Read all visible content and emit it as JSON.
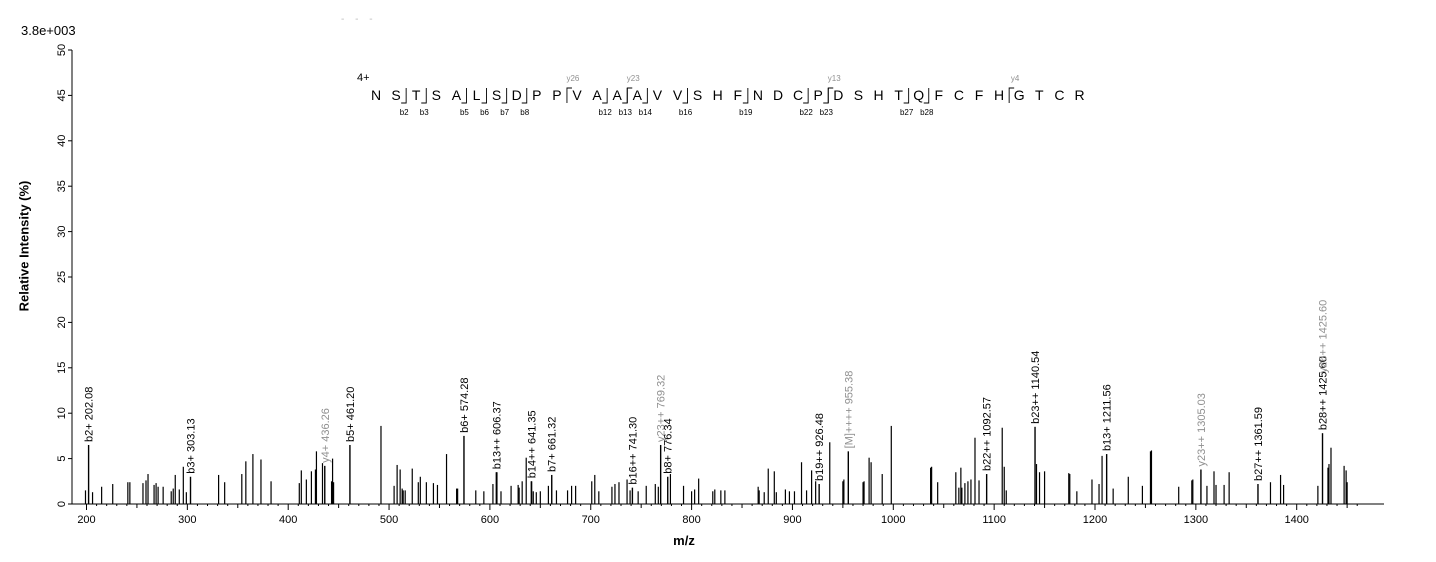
{
  "header": {
    "scale": "3.8e+003",
    "dashes": "- - -",
    "charge": "4+"
  },
  "colors": {
    "matched": "#000000",
    "matched_y": "#909090",
    "peak": "#000000",
    "axis": "#000000"
  },
  "sequence": {
    "residues": [
      "N",
      "S",
      "T",
      "S",
      "A",
      "L",
      "S",
      "D",
      "P",
      "P",
      "V",
      "A",
      "A",
      "A",
      "V",
      "V",
      "S",
      "H",
      "F",
      "N",
      "D",
      "C",
      "P",
      "D",
      "S",
      "H",
      "T",
      "Q",
      "F",
      "C",
      "F",
      "H",
      "G",
      "T",
      "C",
      "R"
    ],
    "b_ions": [
      {
        "after": 2,
        "label": "b2"
      },
      {
        "after": 3,
        "label": "b3"
      },
      {
        "after": 5,
        "label": "b5"
      },
      {
        "after": 6,
        "label": "b6"
      },
      {
        "after": 7,
        "label": "b7"
      },
      {
        "after": 8,
        "label": "b8"
      },
      {
        "after": 12,
        "label": "b12"
      },
      {
        "after": 13,
        "label": "b13"
      },
      {
        "after": 14,
        "label": "b14"
      },
      {
        "after": 16,
        "label": "b16"
      },
      {
        "after": 19,
        "label": "b19"
      },
      {
        "after": 22,
        "label": "b22"
      },
      {
        "after": 23,
        "label": "b23"
      },
      {
        "after": 27,
        "label": "b27"
      },
      {
        "after": 28,
        "label": "b28"
      }
    ],
    "y_ions": [
      {
        "after": 10,
        "label": "y26"
      },
      {
        "after": 13,
        "label": "y23"
      },
      {
        "after": 23,
        "label": "y13"
      },
      {
        "after": 32,
        "label": "y4"
      }
    ]
  },
  "chart_data": {
    "type": "bar",
    "title": "",
    "xlabel": "m/z",
    "ylabel": "Relative   Intensity (%)",
    "xlim": [
      195,
      1485
    ],
    "ylim": [
      0,
      50
    ],
    "xticks": [
      200,
      300,
      400,
      500,
      600,
      700,
      800,
      900,
      1000,
      1100,
      1200,
      1300,
      1400
    ],
    "yticks": [
      0,
      5,
      10,
      15,
      20,
      25,
      30,
      35,
      40,
      45,
      50
    ],
    "annotated_peaks": [
      {
        "mz": 202.08,
        "y": 6.5,
        "label": "b2+ 202.08",
        "ion": "b"
      },
      {
        "mz": 303.13,
        "y": 3.0,
        "label": "b3+ 303.13",
        "ion": "b"
      },
      {
        "mz": 436.26,
        "y": 4.2,
        "label": "y4+ 436.26",
        "ion": "y"
      },
      {
        "mz": 461.2,
        "y": 6.5,
        "label": "b5+ 461.20",
        "ion": "b"
      },
      {
        "mz": 574.28,
        "y": 7.5,
        "label": "b6+ 574.28",
        "ion": "b"
      },
      {
        "mz": 606.37,
        "y": 3.5,
        "label": "b13++ 606.37",
        "ion": "b"
      },
      {
        "mz": 641.35,
        "y": 2.5,
        "label": "b14++ 641.35",
        "ion": "b"
      },
      {
        "mz": 661.32,
        "y": 3.2,
        "label": "b7+ 661.32",
        "ion": "b"
      },
      {
        "mz": 741.3,
        "y": 1.8,
        "label": "b16++ 741.30",
        "ion": "b"
      },
      {
        "mz": 769.32,
        "y": 6.5,
        "label": "y23++ 769.32",
        "ion": "y"
      },
      {
        "mz": 776.34,
        "y": 3.0,
        "label": "b8+ 776.34",
        "ion": "b"
      },
      {
        "mz": 926.48,
        "y": 2.2,
        "label": "b19++ 926.48",
        "ion": "b"
      },
      {
        "mz": 955.38,
        "y": 5.8,
        "label": "[M]++++ 955.38",
        "ion": "y"
      },
      {
        "mz": 1092.57,
        "y": 3.3,
        "label": "b22++ 1092.57",
        "ion": "b"
      },
      {
        "mz": 1140.54,
        "y": 8.5,
        "label": "b23++ 1140.54",
        "ion": "b"
      },
      {
        "mz": 1211.56,
        "y": 5.5,
        "label": "b13+ 1211.56",
        "ion": "b"
      },
      {
        "mz": 1305.03,
        "y": 3.8,
        "label": "y23++ 1305.03",
        "ion": "y"
      },
      {
        "mz": 1361.59,
        "y": 2.2,
        "label": "b27++ 1361.59",
        "ion": "b"
      },
      {
        "mz": 1425.6,
        "y": 7.8,
        "label": "b28++ 1425.60",
        "ion": "b"
      },
      {
        "mz": 1425.6,
        "y": 7.8,
        "label": "y26++ 1425.60",
        "ion": "y",
        "high": true
      }
    ],
    "peaks": [
      [
        199,
        1.5
      ],
      [
        206,
        1.3
      ],
      [
        215,
        1.9
      ],
      [
        226,
        2.2
      ],
      [
        241,
        2.4
      ],
      [
        243,
        2.4
      ],
      [
        256,
        2.3
      ],
      [
        259,
        2.6
      ],
      [
        261,
        3.3
      ],
      [
        267,
        2.1
      ],
      [
        269,
        2.3
      ],
      [
        271,
        1.9
      ],
      [
        276,
        1.9
      ],
      [
        284,
        1.4
      ],
      [
        286,
        1.7
      ],
      [
        288,
        3.2
      ],
      [
        292,
        1.6
      ],
      [
        296,
        4.1
      ],
      [
        299,
        1.3
      ],
      [
        331,
        3.2
      ],
      [
        337,
        2.4
      ],
      [
        354,
        3.3
      ],
      [
        358,
        4.7
      ],
      [
        365,
        5.5
      ],
      [
        373,
        4.9
      ],
      [
        383,
        2.5
      ],
      [
        411,
        2.3
      ],
      [
        413,
        3.7
      ],
      [
        418,
        2.7
      ],
      [
        423,
        3.6
      ],
      [
        427,
        3.8
      ],
      [
        428,
        5.8
      ],
      [
        434,
        4.5
      ],
      [
        443,
        2.5
      ],
      [
        444,
        5.0
      ],
      [
        445,
        2.4
      ],
      [
        492,
        8.6
      ],
      [
        505,
        2.0
      ],
      [
        508,
        4.3
      ],
      [
        511,
        3.8
      ],
      [
        513,
        1.7
      ],
      [
        514,
        1.5
      ],
      [
        516,
        1.5
      ],
      [
        523,
        3.9
      ],
      [
        529,
        2.4
      ],
      [
        531,
        3.0
      ],
      [
        537,
        2.4
      ],
      [
        544,
        2.3
      ],
      [
        548,
        2.1
      ],
      [
        557,
        5.5
      ],
      [
        567,
        1.7
      ],
      [
        568,
        1.7
      ],
      [
        586,
        1.5
      ],
      [
        594,
        1.4
      ],
      [
        603,
        2.2
      ],
      [
        607,
        3.5
      ],
      [
        611,
        1.4
      ],
      [
        621,
        2.0
      ],
      [
        628,
        2.1
      ],
      [
        629,
        1.8
      ],
      [
        632,
        2.5
      ],
      [
        636,
        5.1
      ],
      [
        641,
        2.5
      ],
      [
        643,
        1.4
      ],
      [
        646,
        1.3
      ],
      [
        650,
        1.4
      ],
      [
        658,
        2.0
      ],
      [
        666,
        1.5
      ],
      [
        677,
        1.5
      ],
      [
        681,
        2.0
      ],
      [
        685,
        2.0
      ],
      [
        701,
        2.5
      ],
      [
        704,
        3.2
      ],
      [
        708,
        1.4
      ],
      [
        721,
        1.9
      ],
      [
        724,
        2.2
      ],
      [
        728,
        2.4
      ],
      [
        736,
        2.7
      ],
      [
        739,
        1.5
      ],
      [
        747,
        1.4
      ],
      [
        755,
        2.0
      ],
      [
        764,
        2.2
      ],
      [
        767,
        1.9
      ],
      [
        779,
        3.3
      ],
      [
        792,
        2.0
      ],
      [
        800,
        1.4
      ],
      [
        803,
        1.6
      ],
      [
        807,
        2.8
      ],
      [
        821,
        1.4
      ],
      [
        823,
        1.6
      ],
      [
        829,
        1.5
      ],
      [
        833,
        1.5
      ],
      [
        866,
        1.9
      ],
      [
        867,
        1.5
      ],
      [
        872,
        1.3
      ],
      [
        876,
        3.9
      ],
      [
        882,
        3.6
      ],
      [
        884,
        1.3
      ],
      [
        893,
        1.6
      ],
      [
        897,
        1.4
      ],
      [
        902,
        1.4
      ],
      [
        909,
        4.6
      ],
      [
        914,
        1.5
      ],
      [
        919,
        3.7
      ],
      [
        923,
        2.5
      ],
      [
        937,
        6.8
      ],
      [
        950,
        2.5
      ],
      [
        951,
        2.7
      ],
      [
        970,
        2.4
      ],
      [
        971,
        2.5
      ],
      [
        976,
        5.1
      ],
      [
        978,
        4.6
      ],
      [
        989,
        3.3
      ],
      [
        998,
        8.6
      ],
      [
        1037,
        4.0
      ],
      [
        1038,
        4.1
      ],
      [
        1044,
        2.4
      ],
      [
        1062,
        3.5
      ],
      [
        1065,
        1.8
      ],
      [
        1067,
        4.0
      ],
      [
        1068,
        1.8
      ],
      [
        1071,
        2.3
      ],
      [
        1074,
        2.5
      ],
      [
        1077,
        2.7
      ],
      [
        1081,
        7.3
      ],
      [
        1085,
        2.6
      ],
      [
        1108,
        8.4
      ],
      [
        1110,
        4.1
      ],
      [
        1112,
        1.5
      ],
      [
        1142,
        4.4
      ],
      [
        1145,
        3.5
      ],
      [
        1150,
        3.6
      ],
      [
        1174,
        3.4
      ],
      [
        1175,
        3.3
      ],
      [
        1182,
        1.4
      ],
      [
        1197,
        2.7
      ],
      [
        1204,
        2.2
      ],
      [
        1207,
        5.3
      ],
      [
        1218,
        1.7
      ],
      [
        1233,
        3.0
      ],
      [
        1247,
        2.0
      ],
      [
        1255,
        5.8
      ],
      [
        1256,
        5.9
      ],
      [
        1283,
        1.9
      ],
      [
        1296,
        2.6
      ],
      [
        1297,
        2.7
      ],
      [
        1311,
        2.0
      ],
      [
        1318,
        3.6
      ],
      [
        1320,
        2.1
      ],
      [
        1328,
        2.1
      ],
      [
        1333,
        3.5
      ],
      [
        1374,
        2.4
      ],
      [
        1384,
        3.2
      ],
      [
        1387,
        2.1
      ],
      [
        1421,
        2.0
      ],
      [
        1431,
        4.0
      ],
      [
        1432,
        4.4
      ],
      [
        1434,
        6.2
      ],
      [
        1447,
        4.2
      ],
      [
        1449,
        3.7
      ],
      [
        1450,
        2.4
      ]
    ]
  }
}
